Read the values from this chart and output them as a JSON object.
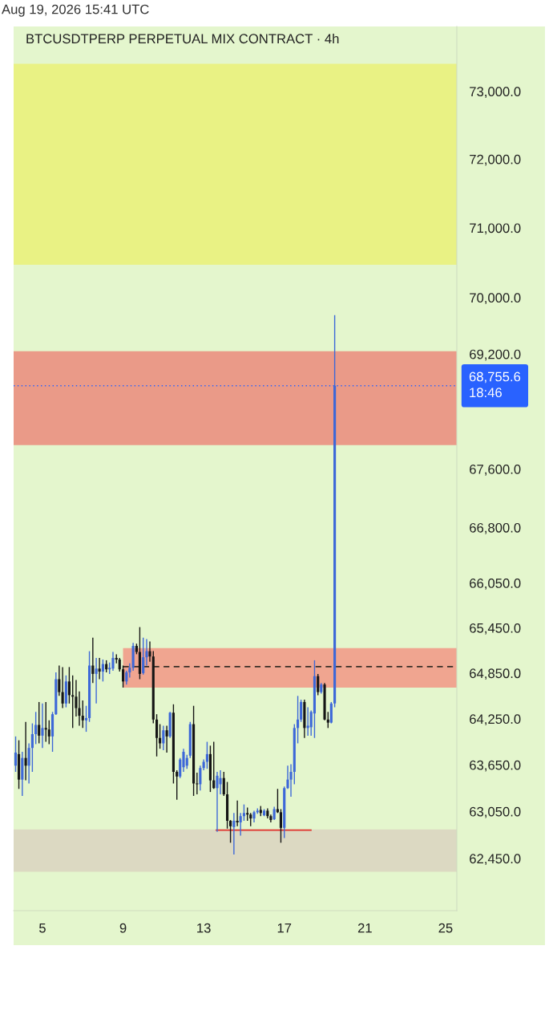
{
  "chart_data": {
    "type": "candlestick",
    "title": "BTCUSDTPERP PERPETUAL MIX CONTRACT · 4h",
    "annotations": [
      "Aug 19, 2026 15:41 UTC"
    ],
    "x": [
      3.67,
      3.83,
      4,
      4.17,
      4.33,
      4.5,
      4.67,
      4.83,
      5,
      5.17,
      5.33,
      5.5,
      5.67,
      5.83,
      6,
      6.17,
      6.33,
      6.5,
      6.67,
      6.83,
      7,
      7.17,
      7.33,
      7.5,
      7.67,
      7.83,
      8,
      8.17,
      8.33,
      8.5,
      8.67,
      8.83,
      9,
      9.17,
      9.33,
      9.5,
      9.67,
      9.83,
      10,
      10.17,
      10.33,
      10.5,
      10.67,
      10.83,
      11,
      11.17,
      11.33,
      11.5,
      11.67,
      11.83,
      12,
      12.17,
      12.33,
      12.5,
      12.67,
      12.83,
      13,
      13.17,
      13.33,
      13.5,
      13.67,
      13.83,
      14,
      14.17,
      14.33,
      14.5,
      14.67,
      14.83,
      15,
      15.17,
      15.33,
      15.5,
      15.67,
      15.83,
      16,
      16.17,
      16.33,
      16.5,
      16.67,
      16.83,
      17,
      17.17,
      17.33,
      17.5,
      17.67,
      17.83,
      18,
      18.17,
      18.33,
      18.5,
      18.67,
      18.83,
      19,
      19.17,
      19.33,
      19.5
    ],
    "ohlc": [
      [
        63640,
        64020,
        63560,
        63810
      ],
      [
        63790,
        63970,
        63340,
        63460
      ],
      [
        63460,
        63820,
        63250,
        63740
      ],
      [
        63740,
        64210,
        63450,
        63640
      ],
      [
        63640,
        63930,
        63410,
        63870
      ],
      [
        63870,
        64190,
        63560,
        64050
      ],
      [
        64050,
        64340,
        63920,
        64170
      ],
      [
        64170,
        64470,
        63930,
        64030
      ],
      [
        64030,
        64450,
        63870,
        64130
      ],
      [
        64130,
        64470,
        63950,
        64110
      ],
      [
        64110,
        64230,
        63920,
        64020
      ],
      [
        64020,
        64340,
        63820,
        64310
      ],
      [
        64310,
        64860,
        64300,
        64770
      ],
      [
        64770,
        64950,
        64550,
        64600
      ],
      [
        64600,
        64930,
        64390,
        64450
      ],
      [
        64450,
        64820,
        64400,
        64740
      ],
      [
        64740,
        64930,
        64450,
        64560
      ],
      [
        64560,
        64820,
        64130,
        64540
      ],
      [
        64540,
        64760,
        64280,
        64390
      ],
      [
        64390,
        64610,
        64160,
        64290
      ],
      [
        64290,
        64490,
        64130,
        64230
      ],
      [
        64230,
        64420,
        64080,
        64260
      ],
      [
        64260,
        65140,
        64210,
        64950
      ],
      [
        64950,
        65320,
        64720,
        64840
      ],
      [
        64840,
        65050,
        64450,
        64910
      ],
      [
        64910,
        65050,
        64770,
        64870
      ],
      [
        64870,
        65030,
        64740,
        64970
      ],
      [
        64970,
        65020,
        64860,
        64900
      ],
      [
        64900,
        64990,
        64840,
        64920
      ],
      [
        64910,
        65130,
        64880,
        65050
      ],
      [
        65050,
        65100,
        64980,
        65030
      ],
      [
        65030,
        65050,
        64870,
        64900
      ],
      [
        64900,
        64950,
        64660,
        64740
      ],
      [
        64740,
        64880,
        64700,
        64860
      ],
      [
        64860,
        64980,
        64790,
        64920
      ],
      [
        64920,
        65250,
        64880,
        65210
      ],
      [
        65210,
        65240,
        65100,
        65130
      ],
      [
        65130,
        65460,
        64770,
        64840
      ],
      [
        64850,
        65320,
        64830,
        65060
      ],
      [
        65060,
        65300,
        64950,
        65140
      ],
      [
        65140,
        65270,
        65000,
        65070
      ],
      [
        65070,
        65140,
        64190,
        64240
      ],
      [
        64240,
        64310,
        63760,
        64000
      ],
      [
        64000,
        64180,
        63860,
        63930
      ],
      [
        63930,
        64160,
        63840,
        64100
      ],
      [
        64100,
        64160,
        63810,
        64020
      ],
      [
        64020,
        64340,
        64000,
        64330
      ],
      [
        64330,
        64440,
        63410,
        63560
      ],
      [
        63560,
        63580,
        63200,
        63500
      ],
      [
        63500,
        63740,
        63480,
        63720
      ],
      [
        63620,
        63860,
        63560,
        63820
      ],
      [
        63640,
        63780,
        63600,
        63740
      ],
      [
        63770,
        64210,
        63740,
        64180
      ],
      [
        64180,
        64420,
        63250,
        63410
      ],
      [
        63410,
        63550,
        63270,
        63400
      ],
      [
        63400,
        63640,
        63320,
        63610
      ],
      [
        63610,
        63720,
        63580,
        63690
      ],
      [
        63690,
        63950,
        63600,
        63790
      ],
      [
        63790,
        63900,
        63300,
        63450
      ],
      [
        63450,
        63950,
        63340,
        63350
      ],
      [
        63350,
        63560,
        62790,
        63510
      ],
      [
        63400,
        63580,
        63270,
        63480
      ],
      [
        63480,
        63560,
        63250,
        63270
      ],
      [
        63270,
        63430,
        62830,
        62930
      ],
      [
        62930,
        62940,
        62650,
        62860
      ],
      [
        62850,
        63030,
        62500,
        62930
      ],
      [
        62930,
        63190,
        62860,
        62910
      ],
      [
        62910,
        63030,
        62740,
        62990
      ],
      [
        62990,
        63140,
        62930,
        63030
      ],
      [
        63030,
        63100,
        62930,
        63010
      ],
      [
        63010,
        63030,
        62860,
        62960
      ],
      [
        62960,
        63060,
        62910,
        63040
      ],
      [
        63040,
        63090,
        63020,
        63060
      ],
      [
        63070,
        63120,
        62990,
        63030
      ],
      [
        63000,
        63080,
        62990,
        63060
      ],
      [
        63060,
        63090,
        62960,
        62990
      ],
      [
        62990,
        63010,
        62910,
        62940
      ],
      [
        62950,
        63110,
        62940,
        63080
      ],
      [
        63080,
        63340,
        63030,
        63040
      ],
      [
        63040,
        63080,
        62650,
        62840
      ],
      [
        62840,
        63370,
        62710,
        63350
      ],
      [
        63350,
        63640,
        63340,
        63460
      ],
      [
        63460,
        63660,
        63240,
        63560
      ],
      [
        63560,
        64180,
        63400,
        64130
      ],
      [
        64130,
        64550,
        63930,
        64240
      ],
      [
        64240,
        64500,
        64210,
        64470
      ],
      [
        64470,
        64500,
        64000,
        64130
      ],
      [
        64130,
        64400,
        64030,
        64160
      ],
      [
        64140,
        64360,
        64030,
        64340
      ],
      [
        64320,
        65020,
        64000,
        64810
      ],
      [
        64810,
        64840,
        64560,
        64600
      ],
      [
        64600,
        64720,
        64580,
        64700
      ],
      [
        64700,
        64720,
        64230,
        64240
      ],
      [
        64240,
        64340,
        64130,
        64200
      ],
      [
        64200,
        64470,
        64190,
        64450
      ],
      [
        64450,
        69750,
        64400,
        68755.6
      ]
    ],
    "colors": [
      "#3d68d8",
      "#151515",
      "#3d68d8",
      "#151515",
      "#3d68d8",
      "#3d68d8",
      "#3d68d8",
      "#151515",
      "#3d68d8",
      "#151515",
      "#151515",
      "#3d68d8",
      "#3d68d8",
      "#151515",
      "#151515",
      "#3d68d8",
      "#151515",
      "#151515",
      "#151515",
      "#151515",
      "#151515",
      "#3d68d8",
      "#3d68d8",
      "#151515",
      "#3d68d8",
      "#151515",
      "#3d68d8",
      "#151515",
      "#3d68d8",
      "#3d68d8",
      "#151515",
      "#151515",
      "#151515",
      "#3d68d8",
      "#3d68d8",
      "#3d68d8",
      "#151515",
      "#151515",
      "#3d68d8",
      "#3d68d8",
      "#151515",
      "#151515",
      "#151515",
      "#151515",
      "#3d68d8",
      "#151515",
      "#3d68d8",
      "#151515",
      "#151515",
      "#3d68d8",
      "#3d68d8",
      "#3d68d8",
      "#3d68d8",
      "#151515",
      "#151515",
      "#3d68d8",
      "#3d68d8",
      "#3d68d8",
      "#151515",
      "#151515",
      "#3d68d8",
      "#3d68d8",
      "#151515",
      "#151515",
      "#151515",
      "#3d68d8",
      "#151515",
      "#3d68d8",
      "#3d68d8",
      "#151515",
      "#151515",
      "#3d68d8",
      "#3d68d8",
      "#151515",
      "#3d68d8",
      "#151515",
      "#151515",
      "#3d68d8",
      "#151515",
      "#151515",
      "#3d68d8",
      "#3d68d8",
      "#3d68d8",
      "#3d68d8",
      "#3d68d8",
      "#3d68d8",
      "#151515",
      "#3d68d8",
      "#3d68d8",
      "#3d68d8",
      "#151515",
      "#3d68d8",
      "#151515",
      "#151515",
      "#3d68d8",
      "#3d68d8"
    ],
    "series": [
      {
        "type": "line",
        "x": [
          9,
          25.56
        ],
        "values": [
          64935,
          64935
        ],
        "lower": [
          64660,
          64660
        ],
        "upper": [
          65180,
          65180
        ],
        "color": "#3a3028",
        "colors": [
          "#f0a590",
          "#f0a590"
        ],
        "line_style": "dashed"
      },
      {
        "type": "line",
        "x": [
          13.63,
          18.32
        ],
        "values": [
          62810,
          62810
        ],
        "color": "#e0302a",
        "line_style": "solid"
      }
    ],
    "bands": [
      {
        "axis": "y",
        "from": 70470,
        "to": 73410,
        "color": "#e9f284"
      },
      {
        "axis": "y",
        "from": 67930,
        "to": 69240,
        "color": "#ea9a88"
      },
      {
        "axis": "y",
        "from": 62280,
        "to": 62820,
        "color": "#dcd9c2"
      }
    ],
    "ref_lines": [
      {
        "axis": "y",
        "value": 68755.6,
        "label": "68,755.6\n18:46",
        "color": "#2962ff",
        "line_style": "dotted"
      }
    ],
    "log": true,
    "xlim": [
      3.57,
      25.56
    ],
    "xticks": [
      5,
      9,
      13,
      17,
      21,
      25
    ],
    "ylim": [
      61790,
      73970
    ],
    "yticks": [
      {
        "value": 62450,
        "label": "62,450.0"
      },
      {
        "value": 63050,
        "label": "63,050.0"
      },
      {
        "value": 63650,
        "label": "63,650.0"
      },
      {
        "value": 64250,
        "label": "64,250.0"
      },
      {
        "value": 64850,
        "label": "64,850.0"
      },
      {
        "value": 65450,
        "label": "65,450.0"
      },
      {
        "value": 66050,
        "label": "66,050.0"
      },
      {
        "value": 66800,
        "label": "66,800.0"
      },
      {
        "value": 67600,
        "label": "67,600.0"
      },
      {
        "value": 69200,
        "label": "69,200.0"
      },
      {
        "value": 70000,
        "label": "70,000.0"
      },
      {
        "value": 71000,
        "label": "71,000.0"
      },
      {
        "value": 72000,
        "label": "72,000.0"
      },
      {
        "value": 73000,
        "label": "73,000.0"
      }
    ]
  }
}
